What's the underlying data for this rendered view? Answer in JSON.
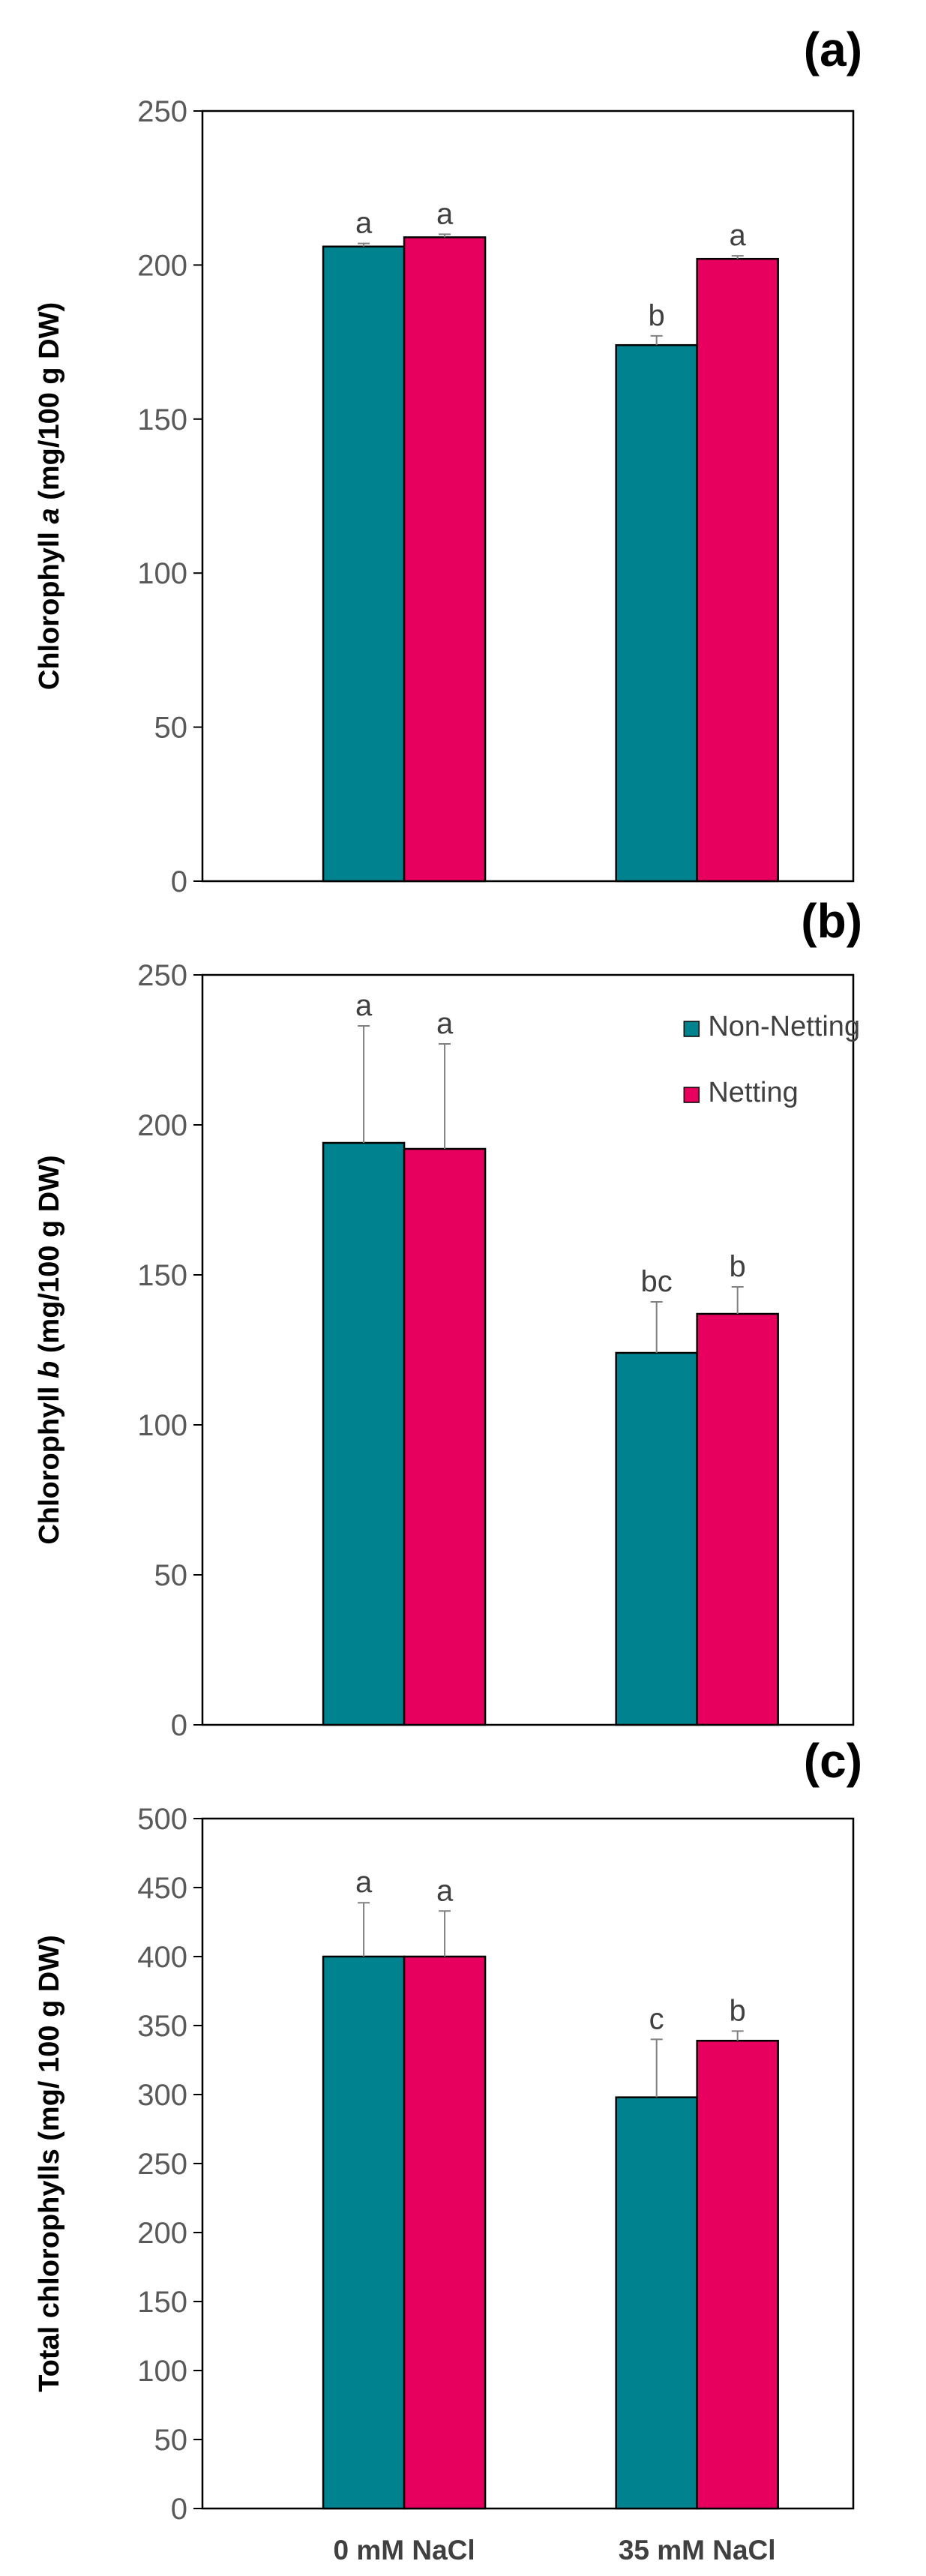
{
  "chart_data": [
    {
      "type": "bar",
      "panel_label": "(a)",
      "ylabel_parts": [
        {
          "text": "Chlorophyll ",
          "italic": false
        },
        {
          "text": "a",
          "italic": true
        },
        {
          "text": " (mg/100 g DW)",
          "italic": false
        }
      ],
      "ylim": [
        0,
        250
      ],
      "ytick_labels": [
        "0",
        "50",
        "100",
        "150",
        "200",
        "250"
      ],
      "categories": [
        "0 mM NaCl",
        "35 mM NaCl"
      ],
      "show_category_labels": false,
      "series": [
        {
          "name": "Non-Netting",
          "color": "#00838F",
          "values": [
            206,
            174
          ],
          "errors": [
            1,
            3
          ],
          "letters": [
            "a",
            "b"
          ]
        },
        {
          "name": "Netting",
          "color": "#E8005F",
          "values": [
            209,
            202
          ],
          "errors": [
            1,
            1
          ],
          "letters": [
            "a",
            "a"
          ]
        }
      ],
      "legend": null,
      "grid": false
    },
    {
      "type": "bar",
      "panel_label": "(b)",
      "ylabel_parts": [
        {
          "text": "Chlorophyll ",
          "italic": false
        },
        {
          "text": "b",
          "italic": true
        },
        {
          "text": " (mg/100  g DW)",
          "italic": false
        }
      ],
      "ylim": [
        0,
        250
      ],
      "ytick_labels": [
        "0",
        "50",
        "100",
        "150",
        "200",
        "250"
      ],
      "categories": [
        "0 mM NaCl",
        "35 mM NaCl"
      ],
      "show_category_labels": false,
      "series": [
        {
          "name": "Non-Netting",
          "color": "#00838F",
          "values": [
            194,
            124
          ],
          "errors": [
            39,
            17
          ],
          "letters": [
            "a",
            "bc"
          ]
        },
        {
          "name": "Netting",
          "color": "#E8005F",
          "values": [
            192,
            137
          ],
          "errors": [
            35,
            9
          ],
          "letters": [
            "a",
            "b"
          ]
        }
      ],
      "legend": {
        "position": "top-right",
        "entries": [
          "Non-Netting",
          "Netting"
        ]
      },
      "grid": false
    },
    {
      "type": "bar",
      "panel_label": "(c)",
      "ylabel_parts": [
        {
          "text": "Total chlorophylls (mg/ 100 g DW)",
          "italic": false
        }
      ],
      "ylim": [
        0,
        500
      ],
      "ytick_labels": [
        "0",
        "50",
        "100",
        "150",
        "200",
        "250",
        "300",
        "350",
        "400",
        "450",
        "500"
      ],
      "categories": [
        "0 mM NaCl",
        "35 mM NaCl"
      ],
      "show_category_labels": true,
      "series": [
        {
          "name": "Non-Netting",
          "color": "#00838F",
          "values": [
            400,
            298
          ],
          "errors": [
            39,
            42
          ],
          "letters": [
            "a",
            "c"
          ]
        },
        {
          "name": "Netting",
          "color": "#E8005F",
          "values": [
            400,
            339
          ],
          "errors": [
            33,
            7
          ],
          "letters": [
            "a",
            "b"
          ]
        }
      ],
      "legend": null,
      "grid": false
    }
  ]
}
